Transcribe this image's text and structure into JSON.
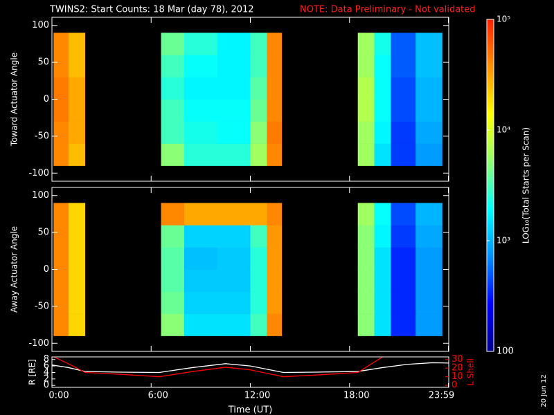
{
  "title": "TWINS2: Start Counts: 18 Mar (day  78), 2012",
  "note": "NOTE: Data Preliminary - Not validated",
  "date_stamp": "20 Jun 12",
  "colorbar": {
    "label": "LOG₁₀(Total Starts per Scan)",
    "log_scale": true,
    "lim": [
      100,
      100000
    ],
    "ticks": [
      {
        "value": 100000,
        "label": "10⁵"
      },
      {
        "value": 10000,
        "label": "10⁴"
      },
      {
        "value": 1000,
        "label": "10³"
      },
      100
    ],
    "colormap": [
      "#000090",
      "#0000ff",
      "#0090ff",
      "#00ffff",
      "#90ff70",
      "#ffff00",
      "#ff9000",
      "#ff2000"
    ]
  },
  "chart_data": [
    {
      "type": "heatmap",
      "y_label": "Toward Actuator Angle",
      "ylim": [
        -111,
        111
      ],
      "yticks": [
        -100,
        -50,
        0,
        50,
        100
      ],
      "x_edges": [
        0.1,
        1.0,
        2.0,
        6.6,
        8,
        10,
        12,
        13,
        13.9,
        18.5,
        19.5,
        20.5,
        22,
        23.6
      ],
      "y_edges": [
        -90,
        -60,
        -30,
        0,
        30,
        60,
        90
      ],
      "values": [
        [
          40000,
          25000,
          null,
          5000,
          2500,
          2500,
          6000,
          40000,
          null,
          6000,
          1500,
          400,
          800
        ],
        [
          40000,
          30000,
          null,
          3000,
          2200,
          2000,
          5000,
          45000,
          null,
          6000,
          1800,
          400,
          900
        ],
        [
          45000,
          30000,
          null,
          3000,
          2000,
          2000,
          4000,
          40000,
          null,
          7000,
          2000,
          450,
          1000
        ],
        [
          45000,
          30000,
          null,
          2500,
          1800,
          1800,
          3500,
          40000,
          null,
          7000,
          2000,
          450,
          1000
        ],
        [
          40000,
          25000,
          null,
          3000,
          2000,
          1800,
          3000,
          40000,
          null,
          6000,
          2000,
          500,
          1100
        ],
        [
          40000,
          25000,
          null,
          4000,
          2500,
          1800,
          3000,
          40000,
          null,
          6000,
          2200,
          500,
          1100
        ]
      ]
    },
    {
      "type": "heatmap",
      "y_label": "Away Actuator Angle",
      "ylim": [
        -111,
        111
      ],
      "yticks": [
        -100,
        -50,
        0,
        50,
        100
      ],
      "x_edges": [
        0.1,
        1.0,
        2.0,
        6.6,
        8,
        10,
        12,
        13,
        13.9,
        18.5,
        19.5,
        20.5,
        22,
        23.6
      ],
      "y_edges": [
        -90,
        -60,
        -30,
        0,
        30,
        60,
        90
      ],
      "values": [
        [
          40000,
          20000,
          null,
          5000,
          1500,
          1500,
          3000,
          40000,
          null,
          5000,
          1500,
          350,
          800
        ],
        [
          40000,
          20000,
          null,
          4000,
          1300,
          1300,
          2500,
          35000,
          null,
          5000,
          1500,
          350,
          800
        ],
        [
          40000,
          20000,
          null,
          3500,
          1200,
          1200,
          2500,
          35000,
          null,
          5000,
          1500,
          350,
          800
        ],
        [
          40000,
          20000,
          null,
          3500,
          1100,
          1200,
          2500,
          35000,
          null,
          5000,
          1500,
          350,
          800
        ],
        [
          40000,
          20000,
          null,
          4000,
          1300,
          1300,
          3000,
          35000,
          null,
          5000,
          1800,
          400,
          900
        ],
        [
          40000,
          20000,
          null,
          40000,
          30000,
          30000,
          30000,
          40000,
          null,
          6000,
          2000,
          450,
          1000
        ]
      ]
    },
    {
      "type": "line",
      "x_label": "Time (UT)",
      "y_label": "R [RE]",
      "y2_label": "L Shell",
      "xlim": [
        0,
        24
      ],
      "xticks": [
        {
          "value": 0,
          "label": "0:00"
        },
        {
          "value": 6,
          "label": "6:00"
        },
        {
          "value": 12,
          "label": "12:00"
        },
        {
          "value": 18,
          "label": "18:00"
        },
        {
          "value": 23.98,
          "label": "23:59"
        }
      ],
      "ylim": [
        -0.6,
        8.8
      ],
      "yticks": [
        0,
        2,
        4,
        6,
        8
      ],
      "y2lim": [
        -2.3,
        33
      ],
      "y2ticks": [
        0,
        10,
        20,
        30
      ],
      "y2_color": "#ff0000",
      "x": [
        0,
        1,
        2,
        4,
        6.5,
        8.5,
        10.5,
        12,
        14,
        16,
        18.5,
        20,
        21.5,
        23,
        24
      ],
      "series": [
        {
          "name": "R",
          "color": "#ffffff",
          "values": [
            6.3,
            5.5,
            4.3,
            4.1,
            4.0,
            5.5,
            6.7,
            6.0,
            4.0,
            4.1,
            4.3,
            5.5,
            6.5,
            7.0,
            6.9
          ]
        },
        {
          "name": "L Shell",
          "color": "#ff0000",
          "axis": "y2",
          "values": [
            34,
            25,
            15,
            13,
            10,
            16,
            21,
            18,
            10,
            12,
            15,
            33,
            null,
            null,
            null
          ]
        }
      ]
    }
  ]
}
